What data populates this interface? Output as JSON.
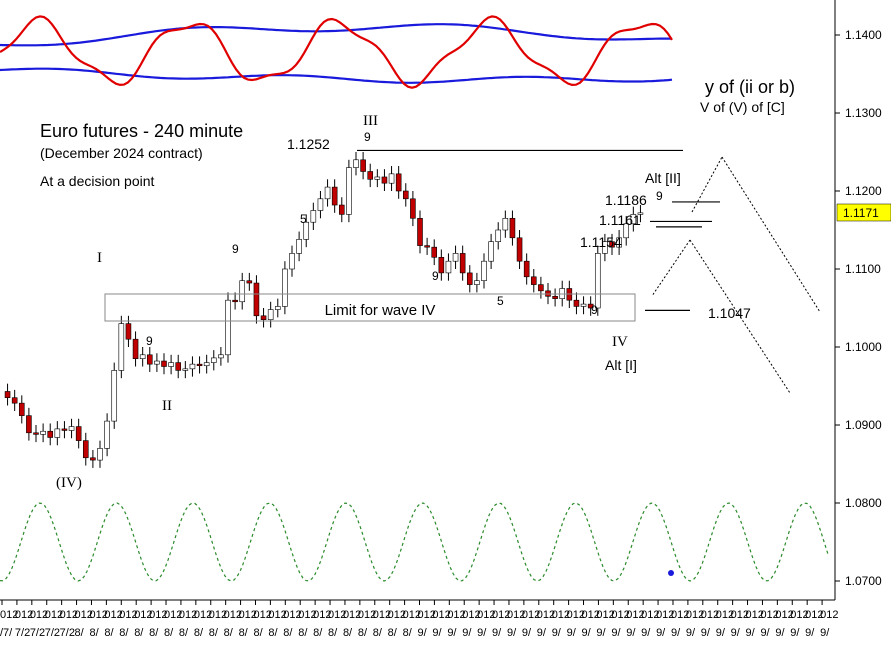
{
  "title": "Euro futures - 240 minute",
  "subtitle": "(December 2024 contract)",
  "note": "At a decision point",
  "projection_label_1": "y of (ii or b)",
  "projection_label_2": "V of (V) of [C]",
  "limit_box_label": "Limit for wave IV",
  "last_price_badge": "1.1171",
  "colors": {
    "up_candle": "#ffffff",
    "down_candle": "#c00000",
    "oscillator": "#e00000",
    "bands": "#1a1adc",
    "cycle": "#2a8a2a",
    "badge": "#ffff00",
    "count_red": "#e00000",
    "count_blue": "#1a1adc",
    "count_olive": "#a08a00",
    "count_green": "#2a9a2a"
  },
  "chart_data": {
    "type": "candlestick",
    "y_axis": {
      "ylim": [
        1.068,
        1.146
      ],
      "ticks": [
        "1.1400",
        "1.1300",
        "1.1200",
        "1.1100",
        "1.1000",
        "1.0900",
        "1.0800",
        "1.0700"
      ],
      "tick_values": [
        1.14,
        1.13,
        1.12,
        1.11,
        1.1,
        1.09,
        1.08,
        1.07
      ]
    },
    "x_tick_labels_row1": [
      "012",
      "012",
      "012",
      "012",
      "012",
      "012",
      "012",
      "012",
      "012",
      "012",
      "012",
      "012",
      "012",
      "012",
      "012",
      "012",
      "012",
      "012",
      "012",
      "012",
      "012",
      "012",
      "012",
      "012",
      "012",
      "012",
      "012",
      "012",
      "012",
      "012",
      "012",
      "012",
      "012",
      "012",
      "012",
      "012",
      "012",
      "012",
      "012",
      "012",
      "012",
      "012",
      "012",
      "012",
      "012",
      "012",
      "012",
      "012",
      "012",
      "012",
      "012",
      "012",
      "012",
      "012",
      "012",
      "012"
    ],
    "x_tick_labels_row2": [
      "/7/",
      "7/2",
      "7/2",
      "7/2",
      "7/2",
      "8/",
      "8/",
      "8/",
      "8/",
      "8/",
      "8/",
      "8/",
      "8/",
      "8/",
      "8/",
      "8/",
      "8/",
      "8/",
      "8/",
      "8/",
      "8/",
      "8/",
      "8/",
      "8/",
      "8/",
      "8/",
      "8/",
      "8/",
      "9/",
      "9/",
      "9/",
      "9/",
      "9/",
      "9/",
      "9/",
      "9/",
      "9/",
      "9/",
      "9/",
      "9/",
      "9/",
      "9/",
      "9/",
      "9/",
      "9/",
      "9/",
      "9/",
      "9/",
      "9/",
      "9/",
      "9/",
      "9/",
      "9/",
      "9/",
      "9/",
      "9/"
    ],
    "closes": [
      1.0935,
      1.0928,
      1.0912,
      1.089,
      1.0888,
      1.0892,
      1.0884,
      1.0895,
      1.0893,
      1.0898,
      1.088,
      1.0858,
      1.0855,
      1.087,
      1.0905,
      1.097,
      1.103,
      1.101,
      1.0985,
      1.099,
      1.0978,
      1.0982,
      1.0975,
      1.098,
      1.097,
      1.0972,
      1.0978,
      1.0976,
      1.098,
      1.0986,
      1.099,
      1.106,
      1.1058,
      1.1085,
      1.1082,
      1.104,
      1.1035,
      1.1048,
      1.1052,
      1.11,
      1.112,
      1.1138,
      1.116,
      1.1175,
      1.119,
      1.1205,
      1.1182,
      1.117,
      1.123,
      1.124,
      1.1225,
      1.1215,
      1.1218,
      1.121,
      1.1222,
      1.12,
      1.119,
      1.1165,
      1.113,
      1.1128,
      1.1115,
      1.1095,
      1.111,
      1.112,
      1.1095,
      1.108,
      1.1085,
      1.111,
      1.1135,
      1.115,
      1.1165,
      1.114,
      1.111,
      1.109,
      1.108,
      1.1072,
      1.1065,
      1.1062,
      1.1075,
      1.106,
      1.1052,
      1.1055,
      1.105,
      1.112,
      1.1135,
      1.1128,
      1.114,
      1.1158,
      1.117,
      1.1172
    ],
    "cycle_label_values": [
      1.08,
      1.07
    ],
    "horizontal_levels": [
      {
        "label": "1.1252",
        "value": 1.1252
      },
      {
        "label": "1.1186",
        "value": 1.1186
      },
      {
        "label": "1.1161",
        "value": 1.1161
      },
      {
        "label": "1.1154",
        "value": 1.1154
      },
      {
        "label": "1.1047",
        "value": 1.1047
      }
    ],
    "limit_box": {
      "label": "Limit for wave IV",
      "top": 1.107,
      "bottom": 1.1033
    },
    "wave_labels": [
      "I",
      "II",
      "III",
      "IV",
      "(IV)",
      "Alt [I]",
      "Alt [II]"
    ],
    "count_nines": [
      {
        "text": "9",
        "color": "red",
        "at": "wave III high"
      },
      {
        "text": "9",
        "color": "red",
        "at": "late July high"
      },
      {
        "text": "9",
        "color": "red",
        "at": "wave II area"
      },
      {
        "text": "9",
        "color": "blue",
        "at": "mid-Aug low"
      },
      {
        "text": "9",
        "color": "blue",
        "at": "wave IV low"
      },
      {
        "text": "9",
        "color": "red",
        "at": "Alt [II] high"
      },
      {
        "text": "5",
        "color": "olive",
        "at": "early Aug"
      },
      {
        "text": "5",
        "color": "olive",
        "at": "late Aug"
      }
    ]
  }
}
